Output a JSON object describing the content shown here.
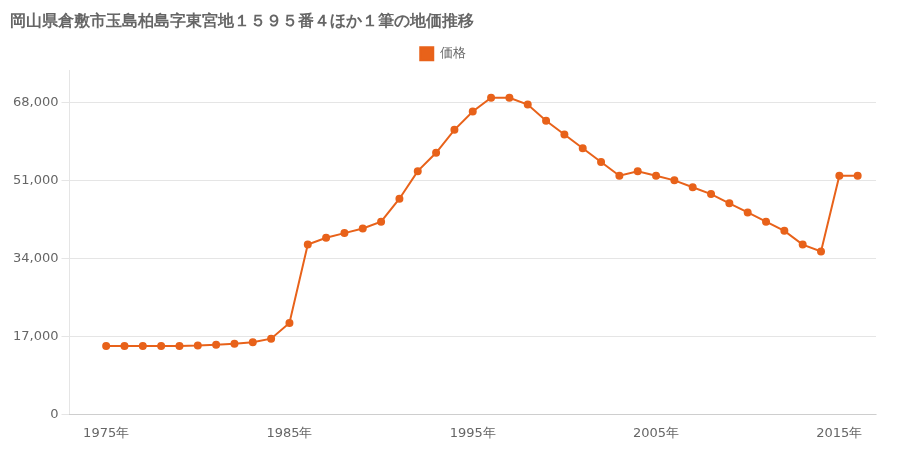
{
  "chart_data": {
    "type": "line",
    "title": "岡山県倉敷市玉島柏島字東宮地１５９５番４ほか１筆の地価推移",
    "x": [
      1975,
      1976,
      1977,
      1978,
      1979,
      1980,
      1981,
      1982,
      1983,
      1984,
      1985,
      1986,
      1987,
      1988,
      1989,
      1990,
      1991,
      1992,
      1993,
      1994,
      1995,
      1996,
      1997,
      1998,
      1999,
      2000,
      2001,
      2002,
      2003,
      2004,
      2005,
      2006,
      2007,
      2008,
      2009,
      2010,
      2011,
      2012,
      2013,
      2014,
      2015,
      2016
    ],
    "series": [
      {
        "name": "価格",
        "color": "#e8621a",
        "marker": "circle",
        "line_style": "solid",
        "values": [
          14900,
          14900,
          14900,
          14900,
          14900,
          15000,
          15200,
          15400,
          15700,
          16500,
          19900,
          37000,
          38500,
          39500,
          40500,
          42000,
          47000,
          53000,
          57000,
          62000,
          66000,
          69000,
          69000,
          67500,
          64000,
          61000,
          58000,
          55000,
          52000,
          53000,
          52000,
          51000,
          49500,
          48000,
          46000,
          44000,
          42000,
          40000,
          37000,
          35500,
          52000,
          52000
        ]
      }
    ],
    "xlim": [
      1973,
      2017
    ],
    "xticks": [
      {
        "value": 1975,
        "label": "1975年"
      },
      {
        "value": 1985,
        "label": "1985年"
      },
      {
        "value": 1995,
        "label": "1995年"
      },
      {
        "value": 2005,
        "label": "2005年"
      },
      {
        "value": 2015,
        "label": "2015年"
      }
    ],
    "ylim": [
      0,
      75000
    ],
    "yticks": [
      0,
      {
        "value": 17000,
        "label": "17,000"
      },
      {
        "value": 34000,
        "label": "34,000"
      },
      {
        "value": 51000,
        "label": "51,000"
      },
      {
        "value": 68000,
        "label": "68,000"
      }
    ],
    "grid": true,
    "legend": "top"
  }
}
